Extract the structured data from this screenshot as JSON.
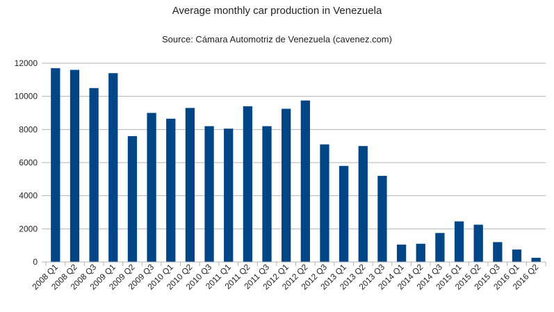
{
  "chart_data": {
    "type": "bar",
    "title": "Average monthly car production in Venezuela",
    "subtitle": "Source: Cámara Automotriz de Venezuela (cavenez.com)",
    "xlabel": "",
    "ylabel": "",
    "ylim": [
      0,
      12000
    ],
    "yticks": [
      0,
      2000,
      4000,
      6000,
      8000,
      10000,
      12000
    ],
    "grid": true,
    "legend": "none",
    "bar_color": "#004586",
    "categories": [
      "2008 Q1",
      "2008 Q2",
      "2008 Q3",
      "2009 Q1",
      "2009 Q2",
      "2009 Q3",
      "2010 Q1",
      "2010 Q2",
      "2010 Q3",
      "2011 Q1",
      "2011 Q2",
      "2011 Q3",
      "2012 Q1",
      "2012 Q2",
      "2012 Q3",
      "2013 Q1",
      "2013 Q2",
      "2013 Q3",
      "2014 Q1",
      "2014 Q2",
      "2014 Q3",
      "2015 Q1",
      "2015 Q2",
      "2015 Q3",
      "2016 Q1",
      "2016 Q2"
    ],
    "values": [
      11700,
      11600,
      10500,
      11400,
      7600,
      9000,
      8650,
      9300,
      8200,
      8050,
      9400,
      8200,
      9250,
      9750,
      7100,
      5800,
      7000,
      5200,
      1050,
      1100,
      1750,
      2450,
      2250,
      1200,
      750,
      250
    ]
  }
}
